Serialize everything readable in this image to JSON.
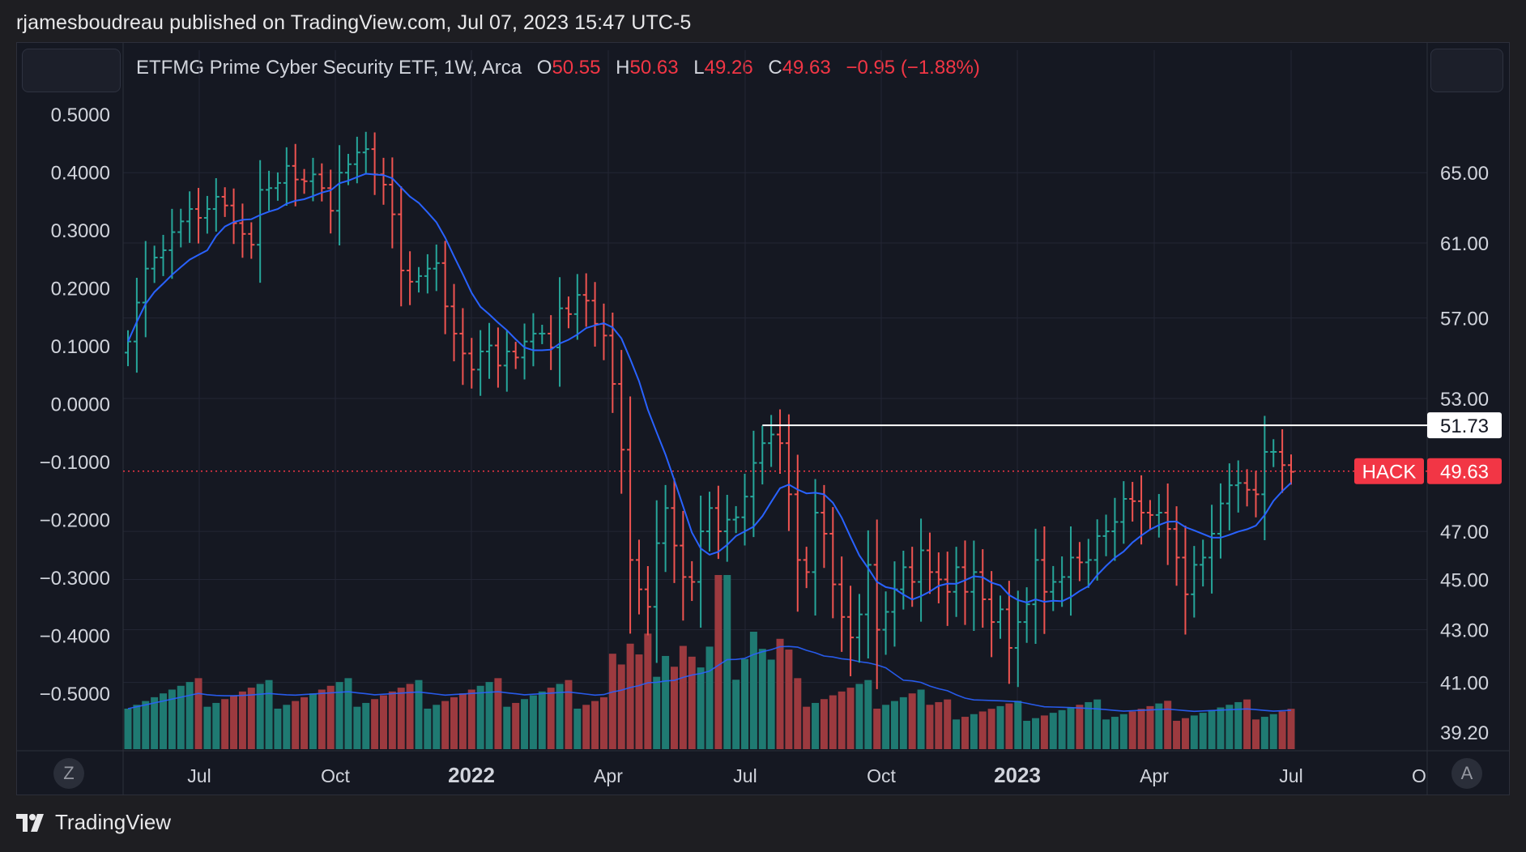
{
  "header": {
    "published_text": "rjamesboudreau published on TradingView.com, Jul 07, 2023 15:47 UTC-5"
  },
  "legend": {
    "symbol_desc": "ETFMG Prime Cyber Security ETF, 1W, Arca",
    "o_label": "O",
    "o_value": "50.55",
    "h_label": "H",
    "h_value": "50.63",
    "l_label": "L",
    "l_value": "49.26",
    "c_label": "C",
    "c_value": "49.63",
    "change": "−0.95 (−1.88%)"
  },
  "footer": {
    "brand": "TradingView"
  },
  "buttons": {
    "zoom_label": "Z",
    "auto_label": "A"
  },
  "colors": {
    "up": "#26a69a",
    "down": "#ef5350",
    "ma": "#2962ff",
    "vol_up": "#1f7a72",
    "vol_down": "#9c3a3f",
    "price_tag": "#f23645"
  },
  "chart_data": {
    "type": "candlestick",
    "title": "ETFMG Prime Cyber Security ETF, 1W, Arca",
    "interval": "1W",
    "x_ticks": [
      "Jul",
      "Oct",
      "2022",
      "Apr",
      "Jul",
      "Oct",
      "2023",
      "Apr",
      "Jul",
      "O"
    ],
    "right_axis_ticks": [
      "65.00",
      "61.00",
      "57.00",
      "53.00",
      "47.00",
      "45.00",
      "43.00",
      "41.00",
      "39.20"
    ],
    "left_axis_ticks": [
      "0.5000",
      "0.4000",
      "0.3000",
      "0.2000",
      "0.1000",
      "0.0000",
      "−0.1000",
      "−0.2000",
      "−0.3000",
      "−0.4000",
      "−0.5000"
    ],
    "right_scale": "log",
    "resistance_line": {
      "value": 51.73,
      "label": "51.73"
    },
    "last_price": {
      "symbol": "HACK",
      "value": 49.63,
      "label": "49.63"
    },
    "series": [
      {
        "name": "HACK",
        "type": "ohlc_weekly",
        "close": [
          55.8,
          57.8,
          59.6,
          60.2,
          60.6,
          61.6,
          62.2,
          62.9,
          62.4,
          62.9,
          63.6,
          63.1,
          62.1,
          61.5,
          60.9,
          64.0,
          64.1,
          64.4,
          65.4,
          64.6,
          64.5,
          64.9,
          64.1,
          62.8,
          65.0,
          65.5,
          66.2,
          66.4,
          64.9,
          64.3,
          62.6,
          59.5,
          58.9,
          59.2,
          59.6,
          59.9,
          57.6,
          56.2,
          55.2,
          54.4,
          55.3,
          55.6,
          54.6,
          55.3,
          55.0,
          55.8,
          56.2,
          56.2,
          55.5,
          57.5,
          57.2,
          58.2,
          57.9,
          56.7,
          56.1,
          53.7,
          50.6,
          45.8,
          44.6,
          43.9,
          46.5,
          48.0,
          46.4,
          45.1,
          44.9,
          47.0,
          48.0,
          47.0,
          47.5,
          47.6,
          48.5,
          50.0,
          50.9,
          51.3,
          50.9,
          48.6,
          45.8,
          45.3,
          47.8,
          46.9,
          44.8,
          43.5,
          42.7,
          43.6,
          45.6,
          43.0,
          43.7,
          44.6,
          45.5,
          44.9,
          46.2,
          45.3,
          45.0,
          44.5,
          45.5,
          44.5,
          45.3,
          44.2,
          43.3,
          43.8,
          42.3,
          43.3,
          44.0,
          45.8,
          44.5,
          44.9,
          45.1,
          45.9,
          45.7,
          45.8,
          46.8,
          47.0,
          47.4,
          48.4,
          48.3,
          47.8,
          47.7,
          47.8,
          47.1,
          45.9,
          44.4,
          45.6,
          45.9,
          46.9,
          48.2,
          49.0,
          49.1,
          48.8,
          48.6,
          50.5,
          50.5,
          49.9,
          49.6
        ],
        "ma_period_note": "moving average shown"
      }
    ],
    "volume_bars": true,
    "grid": true
  }
}
